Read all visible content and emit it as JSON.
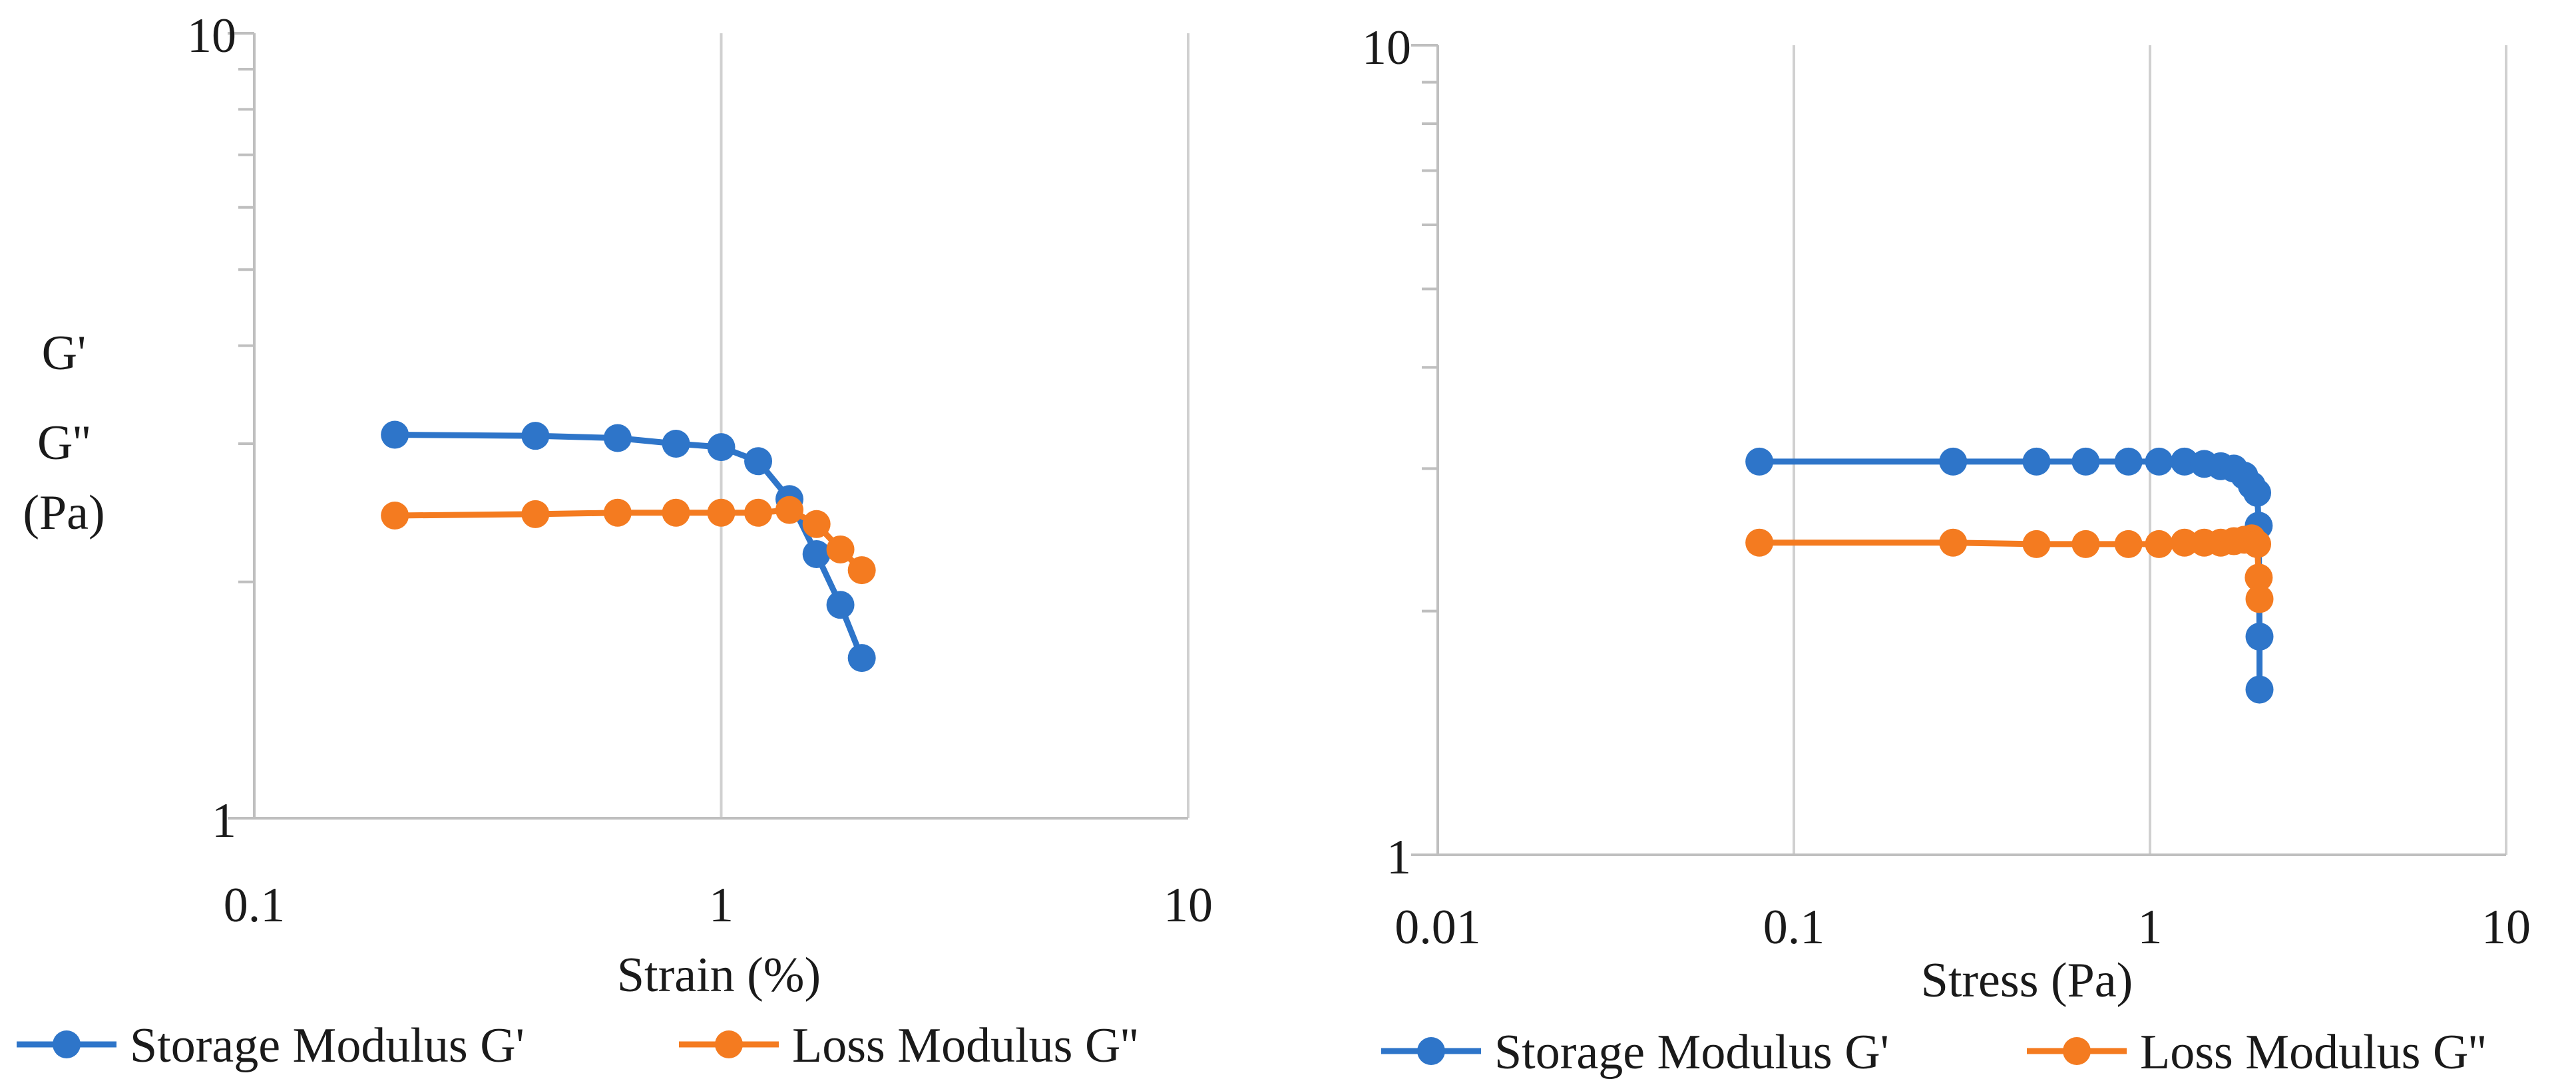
{
  "chart_data": [
    {
      "type": "line",
      "xscale": "log",
      "yscale": "log",
      "xlabel": "Strain (%)",
      "ylabel_lines": [
        "G'",
        "G''",
        "(Pa)"
      ],
      "xlim": [
        0.1,
        10
      ],
      "ylim": [
        1,
        10
      ],
      "x_ticks": [
        0.1,
        1,
        10
      ],
      "x_tick_labels": [
        "0.1",
        "1",
        "10"
      ],
      "y_tick_labels": [
        "1",
        "10"
      ],
      "series": [
        {
          "name": "Storage Modulus G'",
          "color": "#2e75c9",
          "x": [
            0.2,
            0.4,
            0.6,
            0.8,
            1.0,
            1.2,
            1.4,
            1.6,
            1.8,
            2.0
          ],
          "y": [
            3.08,
            3.07,
            3.05,
            3.0,
            2.97,
            2.85,
            2.55,
            2.17,
            1.87,
            1.6
          ]
        },
        {
          "name": "Loss Modulus G''",
          "color": "#f47b20",
          "x": [
            0.2,
            0.4,
            0.6,
            0.8,
            1.0,
            1.2,
            1.4,
            1.6,
            1.8,
            2.0
          ],
          "y": [
            2.43,
            2.44,
            2.45,
            2.45,
            2.45,
            2.45,
            2.47,
            2.37,
            2.2,
            2.07
          ]
        }
      ]
    },
    {
      "type": "line",
      "xscale": "log",
      "yscale": "log",
      "xlabel": "Stress (Pa)",
      "xlim": [
        0.01,
        10
      ],
      "ylim": [
        1,
        10
      ],
      "x_ticks": [
        0.01,
        0.1,
        1,
        10
      ],
      "x_tick_labels": [
        "0.01",
        "0.1",
        "1",
        "10"
      ],
      "y_tick_labels": [
        "1",
        "10"
      ],
      "series": [
        {
          "name": "Storage Modulus G'",
          "color": "#2e75c9",
          "x": [
            0.08,
            0.28,
            0.48,
            0.66,
            0.87,
            1.06,
            1.25,
            1.42,
            1.58,
            1.72,
            1.84,
            1.93,
            2.0,
            2.02,
            2.03,
            2.03
          ],
          "y": [
            3.06,
            3.06,
            3.06,
            3.06,
            3.06,
            3.06,
            3.06,
            3.04,
            3.02,
            3.0,
            2.94,
            2.86,
            2.8,
            2.55,
            1.86,
            1.6
          ]
        },
        {
          "name": "Loss Modulus G''",
          "color": "#f47b20",
          "x": [
            0.08,
            0.28,
            0.48,
            0.66,
            0.87,
            1.06,
            1.25,
            1.42,
            1.58,
            1.72,
            1.84,
            1.93,
            2.0,
            2.02,
            2.03
          ],
          "y": [
            2.43,
            2.43,
            2.42,
            2.42,
            2.42,
            2.42,
            2.43,
            2.43,
            2.43,
            2.44,
            2.45,
            2.46,
            2.42,
            2.2,
            2.07
          ]
        }
      ]
    }
  ]
}
